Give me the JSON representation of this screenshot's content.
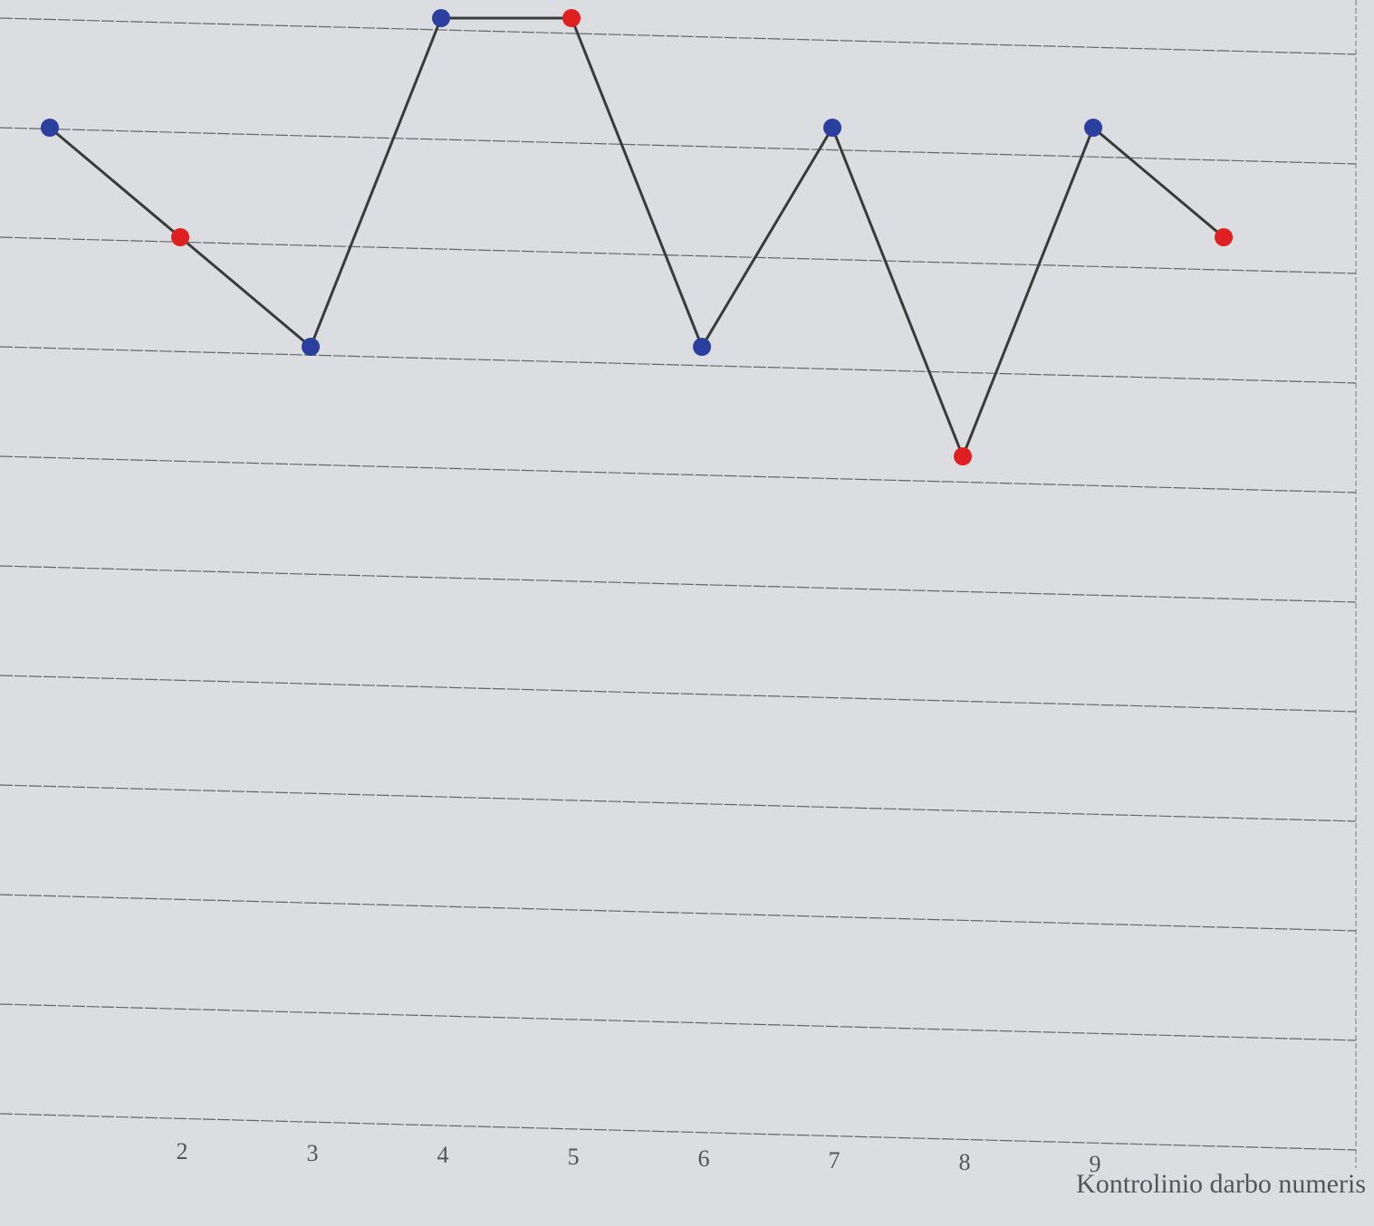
{
  "chart_data": {
    "type": "line",
    "x_label": "Kontrolinio darbo numeris",
    "categories": [
      null,
      "2",
      "3",
      "4",
      "5",
      "6",
      "7",
      "8",
      "9",
      null
    ],
    "series": [
      {
        "color": "#3a3a3a",
        "values": [
          9,
          8,
          7,
          10,
          10,
          7,
          9,
          6,
          9,
          8
        ],
        "point_colors": [
          "#2a3fa0",
          "#e02020",
          "#2a3fa0",
          "#2a3fa0",
          "#e02020",
          "#2a3fa0",
          "#2a3fa0",
          "#e02020",
          "#2a3fa0",
          "#e02020"
        ]
      }
    ],
    "ylim": [
      0,
      10
    ],
    "yticks": [
      0,
      1,
      2,
      3,
      4,
      5,
      6,
      7,
      8,
      9,
      10
    ],
    "grid": true
  }
}
